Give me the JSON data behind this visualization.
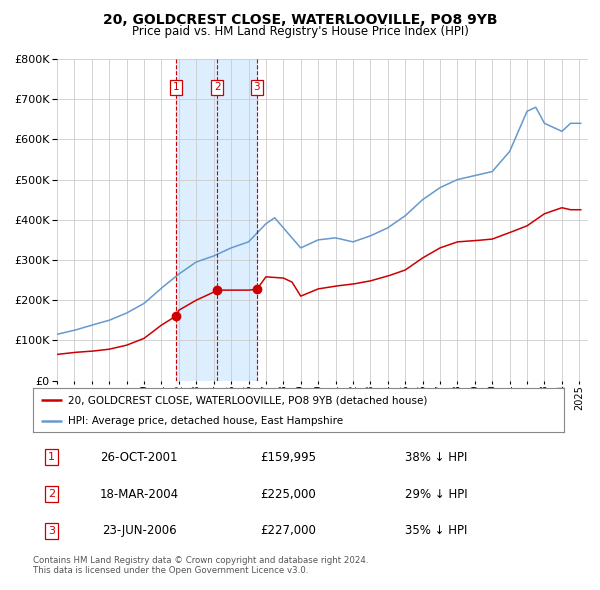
{
  "title": "20, GOLDCREST CLOSE, WATERLOOVILLE, PO8 9YB",
  "subtitle": "Price paid vs. HM Land Registry's House Price Index (HPI)",
  "legend_entry1": "20, GOLDCREST CLOSE, WATERLOOVILLE, PO8 9YB (detached house)",
  "legend_entry2": "HPI: Average price, detached house, East Hampshire",
  "footer1": "Contains HM Land Registry data © Crown copyright and database right 2024.",
  "footer2": "This data is licensed under the Open Government Licence v3.0.",
  "transactions": [
    {
      "num": 1,
      "date": "26-OCT-2001",
      "date_val": 2001.82,
      "price": 159995,
      "price_str": "£159,995",
      "hpi_pct": "38% ↓ HPI"
    },
    {
      "num": 2,
      "date": "18-MAR-2004",
      "date_val": 2004.21,
      "price": 225000,
      "price_str": "£225,000",
      "hpi_pct": "29% ↓ HPI"
    },
    {
      "num": 3,
      "date": "23-JUN-2006",
      "date_val": 2006.48,
      "price": 227000,
      "price_str": "£227,000",
      "hpi_pct": "35% ↓ HPI"
    }
  ],
  "shade_xmin": 2001.82,
  "shade_xmax": 2006.48,
  "ylim": [
    0,
    800000
  ],
  "xlim_min": 1995.0,
  "xlim_max": 2025.5,
  "red_color": "#cc0000",
  "blue_color": "#6699cc",
  "shade_color": "#ddeeff",
  "grid_color": "#cccccc",
  "background_color": "#ffffff",
  "hpi_years": [
    1995,
    1996,
    1997,
    1998,
    1999,
    2000,
    2001,
    2002,
    2003,
    2004,
    2005,
    2006,
    2007,
    2007.5,
    2008,
    2009,
    2010,
    2011,
    2012,
    2013,
    2014,
    2015,
    2016,
    2017,
    2018,
    2019,
    2020,
    2021,
    2022,
    2022.5,
    2023,
    2024,
    2024.5
  ],
  "hpi_prices": [
    115000,
    125000,
    138000,
    150000,
    168000,
    192000,
    230000,
    265000,
    295000,
    310000,
    330000,
    345000,
    390000,
    405000,
    380000,
    330000,
    350000,
    355000,
    345000,
    360000,
    380000,
    410000,
    450000,
    480000,
    500000,
    510000,
    520000,
    570000,
    670000,
    680000,
    640000,
    620000,
    640000
  ],
  "house_years": [
    1995,
    1996,
    1997,
    1998,
    1999,
    2000,
    2001,
    2001.82,
    2002,
    2003,
    2004,
    2004.21,
    2005,
    2006,
    2006.48,
    2007,
    2008,
    2008.5,
    2009,
    2010,
    2011,
    2012,
    2013,
    2014,
    2015,
    2016,
    2017,
    2018,
    2019,
    2020,
    2021,
    2022,
    2023,
    2024,
    2024.5
  ],
  "house_prices": [
    65000,
    70000,
    73000,
    78000,
    88000,
    105000,
    138000,
    159995,
    175000,
    200000,
    220000,
    225000,
    225000,
    225000,
    227000,
    258000,
    255000,
    245000,
    210000,
    228000,
    235000,
    240000,
    248000,
    260000,
    275000,
    305000,
    330000,
    345000,
    348000,
    352000,
    368000,
    385000,
    415000,
    430000,
    425000
  ]
}
